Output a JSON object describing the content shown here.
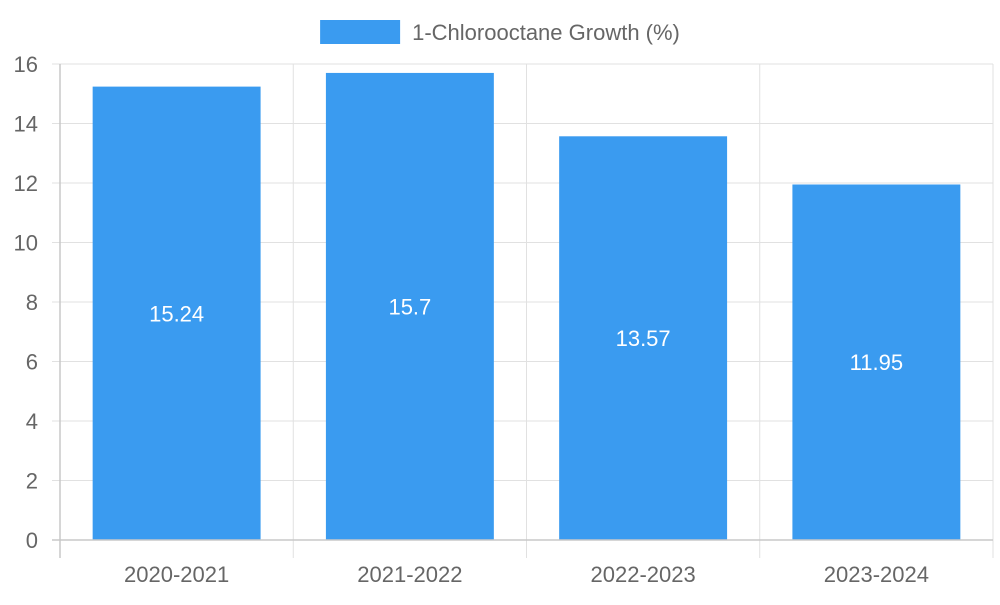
{
  "chart_data": {
    "type": "bar",
    "categories": [
      "2020-2021",
      "2021-2022",
      "2022-2023",
      "2023-2024"
    ],
    "series": [
      {
        "name": "1-Chlorooctane Growth (%)",
        "values": [
          15.24,
          15.7,
          13.57,
          11.95
        ],
        "color": "#3a9bf0"
      }
    ],
    "data_labels": [
      "15.24",
      "15.7",
      "13.57",
      "11.95"
    ],
    "y_ticks": [
      "0",
      "2",
      "4",
      "6",
      "8",
      "10",
      "12",
      "14",
      "16"
    ],
    "ylim": [
      0,
      16
    ],
    "grid": true,
    "legend_position": "top-center",
    "title": "",
    "xlabel": "",
    "ylabel": ""
  }
}
